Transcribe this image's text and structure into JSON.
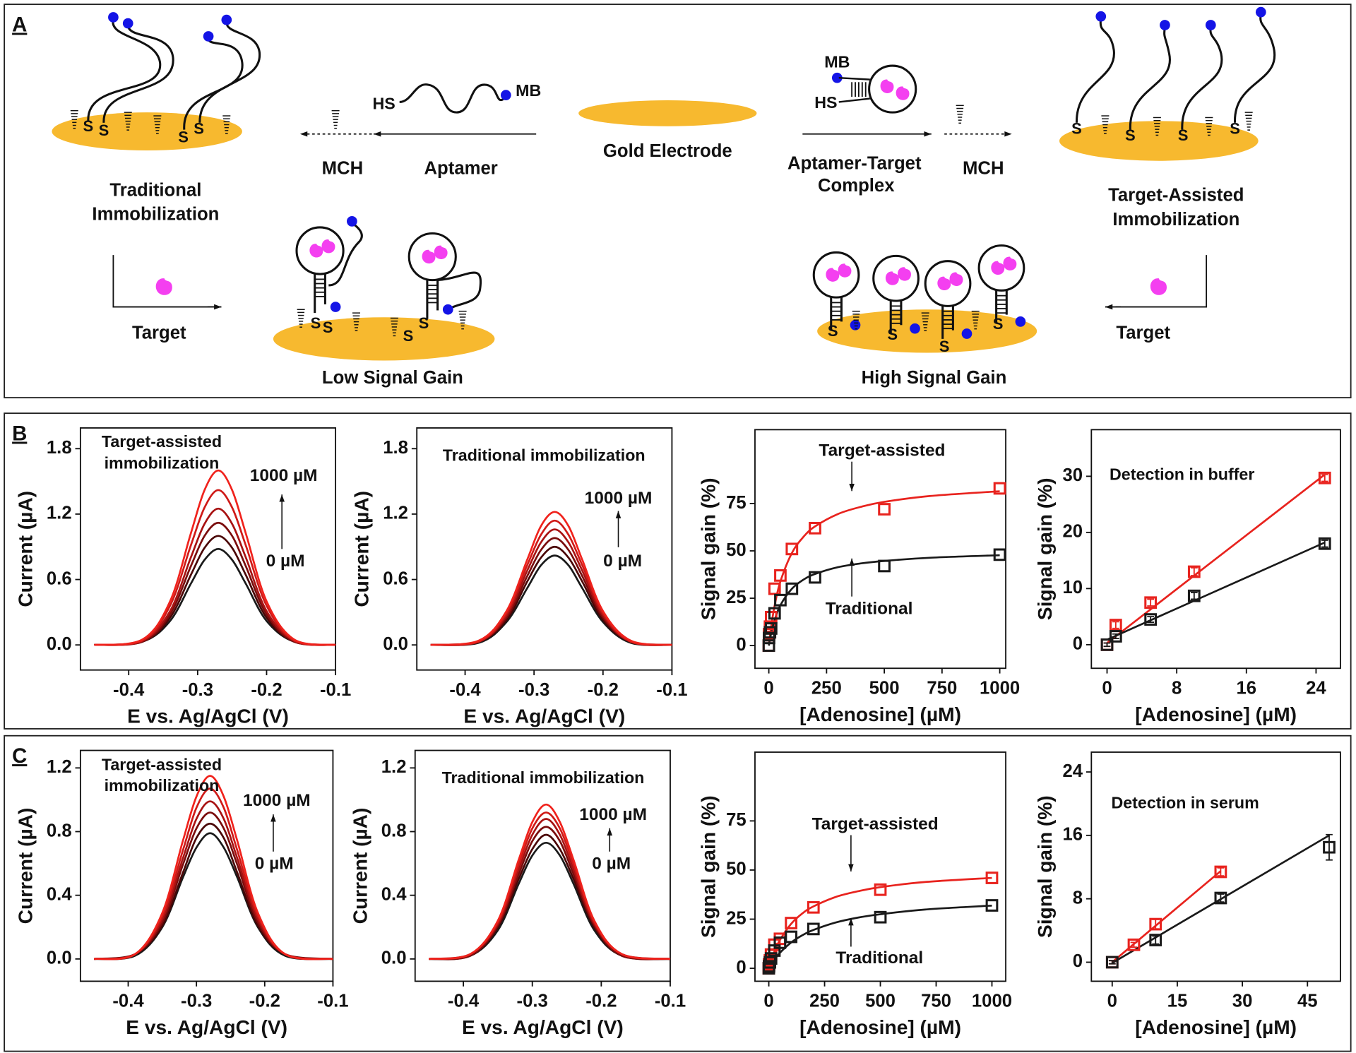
{
  "panel_labels": [
    "A",
    "B",
    "C"
  ],
  "diagram": {
    "traditional": [
      "Traditional",
      "Immobilization"
    ],
    "mch": "MCH",
    "aptamer": "Aptamer",
    "gold_electrode": "Gold Electrode",
    "complex": [
      "Aptamer-Target",
      "Complex"
    ],
    "target_assisted": [
      "Target-Assisted",
      "Immobilization"
    ],
    "target": "Target",
    "low_gain": "Low Signal Gain",
    "high_gain": "High Signal Gain",
    "hs": "HS",
    "mb": "MB",
    "thiol": "S"
  },
  "chart_data": [
    {
      "type": "line",
      "title": [
        "Target-assisted",
        "immobilization"
      ],
      "annotations": [
        "1000 µM",
        "0 µM"
      ],
      "x_label": "E vs. Ag/AgCl (V)",
      "y_label": "Current (µA)",
      "xlim": [
        -0.47,
        -0.1
      ],
      "ylim": [
        -0.23,
        1.99
      ],
      "xticks": [
        -0.4,
        -0.3,
        -0.2,
        -0.1
      ],
      "yticks": [
        {
          "value": 0,
          "label": "0.0"
        },
        0.6,
        1.2,
        1.8
      ],
      "x": [
        -0.45,
        -0.38,
        -0.34,
        -0.31,
        -0.29,
        -0.27,
        -0.25,
        -0.23,
        -0.2,
        -0.16,
        -0.1
      ],
      "series": [
        {
          "color": "#1a1a1a",
          "values": [
            0,
            0.03,
            0.22,
            0.56,
            0.78,
            0.88,
            0.78,
            0.56,
            0.22,
            0.03,
            0
          ]
        },
        {
          "color": "#4a0606",
          "values": [
            0,
            0.03,
            0.25,
            0.64,
            0.89,
            1.0,
            0.89,
            0.64,
            0.25,
            0.03,
            0
          ]
        },
        {
          "color": "#7a0c0c",
          "values": [
            0,
            0.03,
            0.28,
            0.72,
            1.0,
            1.12,
            1.0,
            0.72,
            0.28,
            0.03,
            0
          ]
        },
        {
          "color": "#a81212",
          "values": [
            0,
            0.04,
            0.31,
            0.8,
            1.11,
            1.25,
            1.11,
            0.8,
            0.31,
            0.04,
            0
          ]
        },
        {
          "color": "#cf1a17",
          "values": [
            0,
            0.04,
            0.36,
            0.91,
            1.26,
            1.42,
            1.26,
            0.91,
            0.36,
            0.04,
            0
          ]
        },
        {
          "color": "#f0221c",
          "values": [
            0,
            0.05,
            0.4,
            1.02,
            1.42,
            1.6,
            1.42,
            1.02,
            0.4,
            0.05,
            0
          ]
        }
      ]
    },
    {
      "type": "line",
      "title": [
        "Traditional immobilization"
      ],
      "annotations": [
        "1000 µM",
        "0 µM"
      ],
      "x_label": "E vs. Ag/AgCl (V)",
      "y_label": "Current (µA)",
      "xlim": [
        -0.47,
        -0.1
      ],
      "ylim": [
        -0.23,
        1.99
      ],
      "xticks": [
        -0.4,
        -0.3,
        -0.2,
        -0.1
      ],
      "yticks": [
        {
          "value": 0,
          "label": "0.0"
        },
        0.6,
        1.2,
        1.8
      ],
      "x": [
        -0.45,
        -0.38,
        -0.34,
        -0.31,
        -0.29,
        -0.27,
        -0.25,
        -0.23,
        -0.2,
        -0.16,
        -0.1
      ],
      "series": [
        {
          "color": "#1a1a1a",
          "values": [
            0,
            0.02,
            0.21,
            0.52,
            0.73,
            0.82,
            0.73,
            0.52,
            0.21,
            0.02,
            0
          ]
        },
        {
          "color": "#4a0606",
          "values": [
            0,
            0.03,
            0.23,
            0.58,
            0.8,
            0.9,
            0.8,
            0.58,
            0.23,
            0.03,
            0
          ]
        },
        {
          "color": "#7a0c0c",
          "values": [
            0,
            0.03,
            0.25,
            0.63,
            0.87,
            0.98,
            0.87,
            0.63,
            0.25,
            0.03,
            0
          ]
        },
        {
          "color": "#a81212",
          "values": [
            0,
            0.03,
            0.27,
            0.68,
            0.94,
            1.06,
            0.94,
            0.68,
            0.27,
            0.03,
            0
          ]
        },
        {
          "color": "#cf1a17",
          "values": [
            0,
            0.03,
            0.29,
            0.73,
            1.01,
            1.14,
            1.01,
            0.73,
            0.29,
            0.03,
            0
          ]
        },
        {
          "color": "#f0221c",
          "values": [
            0,
            0.04,
            0.31,
            0.78,
            1.09,
            1.22,
            1.09,
            0.78,
            0.31,
            0.04,
            0
          ]
        }
      ]
    },
    {
      "type": "scatter",
      "annotations": [
        "Target-assisted",
        "Traditional"
      ],
      "x_label": "[Adenosine] (µM)",
      "y_label": "Signal gain (%)",
      "xlim": [
        -60,
        1026
      ],
      "ylim": [
        -12,
        114
      ],
      "xticks": [
        0,
        250,
        500,
        750,
        1000
      ],
      "yticks": [
        0,
        25,
        50,
        75
      ],
      "series": [
        {
          "color": "#e8231e",
          "x": [
            0,
            1,
            5,
            10,
            25,
            50,
            100,
            200,
            500,
            1000
          ],
          "values": [
            0,
            6,
            10,
            15,
            30,
            37,
            51,
            62,
            72,
            83
          ]
        },
        {
          "color": "#1a1a1a",
          "x": [
            0,
            1,
            5,
            10,
            25,
            50,
            100,
            200,
            500,
            1000
          ],
          "values": [
            0,
            4,
            7,
            9,
            17,
            24,
            30,
            36,
            42,
            48
          ]
        }
      ],
      "fits": [
        {
          "color": "#e8231e",
          "x": [
            0,
            10,
            25,
            50,
            100,
            150,
            200,
            300,
            400,
            500,
            700,
            1000
          ],
          "values": [
            0,
            9.8,
            21.0,
            33.8,
            48.9,
            57.4,
            62.9,
            69.5,
            73.3,
            75.9,
            79.0,
            81.5
          ]
        },
        {
          "color": "#1a1a1a",
          "x": [
            0,
            10,
            25,
            50,
            100,
            150,
            200,
            300,
            400,
            500,
            700,
            1000
          ],
          "values": [
            0,
            6.4,
            13.4,
            21.3,
            30.0,
            34.8,
            37.8,
            41.4,
            43.4,
            44.7,
            46.4,
            47.7
          ]
        }
      ]
    },
    {
      "type": "scatter",
      "title": [
        "Detection in buffer"
      ],
      "x_label": "[Adenosine] (µM)",
      "y_label": "Signal gain (%)",
      "xlim": [
        -1.8,
        26.8
      ],
      "ylim": [
        -4.2,
        38.3
      ],
      "xticks": [
        0,
        8,
        16,
        24
      ],
      "yticks": [
        0,
        10,
        20,
        30
      ],
      "series": [
        {
          "color": "#e8231e",
          "x": [
            0,
            1,
            5,
            10,
            25
          ],
          "values": [
            0,
            3.5,
            7.5,
            13,
            29.7
          ],
          "errors": [
            0.3,
            0.6,
            0.6,
            0.7,
            0.6
          ]
        },
        {
          "color": "#1a1a1a",
          "x": [
            0,
            1,
            5,
            10,
            25
          ],
          "values": [
            0,
            1.5,
            4.5,
            8.7,
            18
          ],
          "errors": [
            0.3,
            0.4,
            0.5,
            0.6,
            0.6
          ]
        }
      ],
      "fits": [
        {
          "color": "#e8231e",
          "x": [
            0,
            25
          ],
          "values": [
            0.3,
            30.3
          ]
        },
        {
          "color": "#1a1a1a",
          "x": [
            0,
            25
          ],
          "values": [
            0.9,
            18.2
          ]
        }
      ]
    },
    {
      "type": "line",
      "title": [
        "Target-assisted",
        "immobilization"
      ],
      "annotations": [
        "1000 µM",
        "0 µM"
      ],
      "x_label": "E vs. Ag/AgCl (V)",
      "y_label": "Current (µA)",
      "xlim": [
        -0.47,
        -0.1
      ],
      "ylim": [
        -0.14,
        1.31
      ],
      "xticks": [
        -0.4,
        -0.3,
        -0.2,
        -0.1
      ],
      "yticks": [
        {
          "value": 0,
          "label": "0.0"
        },
        0.4,
        0.8,
        1.2
      ],
      "x": [
        -0.45,
        -0.39,
        -0.35,
        -0.32,
        -0.3,
        -0.28,
        -0.26,
        -0.24,
        -0.21,
        -0.17,
        -0.1
      ],
      "series": [
        {
          "color": "#1a1a1a",
          "values": [
            0,
            0.02,
            0.2,
            0.51,
            0.7,
            0.79,
            0.7,
            0.51,
            0.2,
            0.02,
            0
          ]
        },
        {
          "color": "#4a0606",
          "values": [
            0,
            0.03,
            0.21,
            0.54,
            0.76,
            0.85,
            0.76,
            0.54,
            0.21,
            0.03,
            0
          ]
        },
        {
          "color": "#7a0c0c",
          "values": [
            0,
            0.03,
            0.23,
            0.59,
            0.82,
            0.92,
            0.82,
            0.59,
            0.23,
            0.03,
            0
          ]
        },
        {
          "color": "#a81212",
          "values": [
            0,
            0.03,
            0.25,
            0.63,
            0.88,
            0.99,
            0.88,
            0.63,
            0.25,
            0.03,
            0
          ]
        },
        {
          "color": "#cf1a17",
          "values": [
            0,
            0.03,
            0.27,
            0.68,
            0.95,
            1.07,
            0.95,
            0.68,
            0.27,
            0.03,
            0
          ]
        },
        {
          "color": "#f0221c",
          "values": [
            0,
            0.03,
            0.29,
            0.74,
            1.02,
            1.15,
            1.02,
            0.74,
            0.29,
            0.03,
            0
          ]
        }
      ]
    },
    {
      "type": "line",
      "title": [
        "Traditional immobilization"
      ],
      "annotations": [
        "1000 µM",
        "0 µM"
      ],
      "x_label": "E vs. Ag/AgCl (V)",
      "y_label": "Current (µA)",
      "xlim": [
        -0.47,
        -0.1
      ],
      "ylim": [
        -0.14,
        1.31
      ],
      "xticks": [
        -0.4,
        -0.3,
        -0.2,
        -0.1
      ],
      "yticks": [
        {
          "value": 0,
          "label": "0.0"
        },
        0.4,
        0.8,
        1.2
      ],
      "x": [
        -0.45,
        -0.39,
        -0.35,
        -0.32,
        -0.3,
        -0.28,
        -0.26,
        -0.24,
        -0.21,
        -0.17,
        -0.1
      ],
      "series": [
        {
          "color": "#1a1a1a",
          "values": [
            0,
            0.02,
            0.18,
            0.47,
            0.65,
            0.73,
            0.65,
            0.47,
            0.18,
            0.02,
            0
          ]
        },
        {
          "color": "#4a0606",
          "values": [
            0,
            0.02,
            0.2,
            0.5,
            0.69,
            0.78,
            0.69,
            0.5,
            0.2,
            0.02,
            0
          ]
        },
        {
          "color": "#7a0c0c",
          "values": [
            0,
            0.02,
            0.21,
            0.53,
            0.74,
            0.83,
            0.74,
            0.53,
            0.21,
            0.02,
            0
          ]
        },
        {
          "color": "#a81212",
          "values": [
            0,
            0.03,
            0.22,
            0.56,
            0.78,
            0.88,
            0.78,
            0.56,
            0.22,
            0.03,
            0
          ]
        },
        {
          "color": "#cf1a17",
          "values": [
            0,
            0.03,
            0.23,
            0.59,
            0.82,
            0.92,
            0.82,
            0.59,
            0.23,
            0.03,
            0
          ]
        },
        {
          "color": "#f0221c",
          "values": [
            0,
            0.03,
            0.24,
            0.62,
            0.86,
            0.97,
            0.86,
            0.62,
            0.24,
            0.03,
            0
          ]
        }
      ]
    },
    {
      "type": "scatter",
      "annotations": [
        "Target-assisted",
        "Traditional"
      ],
      "x_label": "[Adenosine] (µM)",
      "y_label": "Signal gain (%)",
      "xlim": [
        -62,
        1062
      ],
      "ylim": [
        -6.6,
        110
      ],
      "xticks": [
        0,
        250,
        500,
        750,
        1000
      ],
      "yticks": [
        0,
        25,
        50,
        75
      ],
      "series": [
        {
          "color": "#e8231e",
          "x": [
            0,
            1,
            5,
            10,
            25,
            50,
            100,
            200,
            500,
            1000
          ],
          "values": [
            0,
            2,
            4,
            7,
            12,
            15,
            23,
            31,
            40,
            46
          ]
        },
        {
          "color": "#1a1a1a",
          "x": [
            0,
            1,
            5,
            10,
            25,
            50,
            100,
            200,
            500,
            1000
          ],
          "values": [
            0,
            1,
            3,
            5,
            9,
            13,
            16,
            20,
            26,
            32
          ]
        }
      ],
      "fits": [
        {
          "color": "#e8231e",
          "x": [
            0,
            10,
            25,
            50,
            100,
            150,
            200,
            300,
            400,
            500,
            700,
            1000
          ],
          "values": [
            0,
            3.7,
            8.4,
            14.4,
            22.6,
            27.9,
            31.5,
            36.3,
            39.2,
            41.3,
            43.9,
            46.0
          ]
        },
        {
          "color": "#1a1a1a",
          "x": [
            0,
            10,
            25,
            50,
            100,
            150,
            200,
            300,
            400,
            500,
            700,
            1000
          ],
          "values": [
            0,
            1.9,
            4.4,
            7.9,
            13.1,
            16.8,
            19.5,
            23.3,
            25.8,
            27.5,
            29.9,
            31.9
          ]
        }
      ]
    },
    {
      "type": "scatter",
      "title": [
        "Detection in serum"
      ],
      "x_label": "[Adenosine] (µM)",
      "y_label": "Signal gain (%)",
      "xlim": [
        -4.8,
        52.6
      ],
      "ylim": [
        -2.4,
        26.5
      ],
      "xticks": [
        0,
        15,
        30,
        45
      ],
      "yticks": [
        0,
        8,
        16,
        24
      ],
      "series": [
        {
          "color": "#e8231e",
          "x": [
            0,
            5,
            10,
            25
          ],
          "values": [
            0,
            2.2,
            4.8,
            11.4
          ],
          "errors": [
            0.2,
            0.3,
            0.6,
            0.5
          ]
        },
        {
          "color": "#1a1a1a",
          "x": [
            0,
            10,
            25,
            50
          ],
          "values": [
            0,
            2.8,
            8.1,
            14.5
          ],
          "errors": [
            0.2,
            0.5,
            0.5,
            1.6
          ]
        }
      ],
      "fits": [
        {
          "color": "#e8231e",
          "x": [
            0,
            25
          ],
          "values": [
            0,
            11.5
          ]
        },
        {
          "color": "#1a1a1a",
          "x": [
            0,
            50
          ],
          "values": [
            -0.1,
            16
          ]
        }
      ]
    }
  ]
}
